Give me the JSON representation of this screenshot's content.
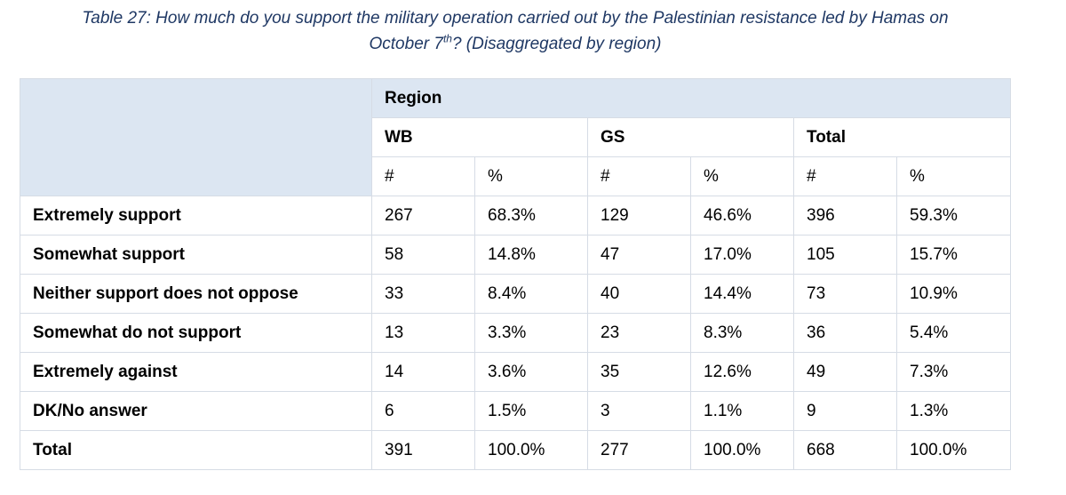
{
  "caption": {
    "line1": "Table 27: How much do you support the military operation carried out by the Palestinian resistance led by Hamas on",
    "line2_pre": "October 7",
    "line2_sup": "th",
    "line2_post": "? (Disaggregated by region)"
  },
  "table": {
    "region_label": "Region",
    "groups": [
      "WB",
      "GS",
      "Total"
    ],
    "subheaders": [
      "#",
      "%",
      "#",
      "%",
      "#",
      "%"
    ],
    "rows": [
      {
        "label": "Extremely support",
        "values": [
          "267",
          "68.3%",
          "129",
          "46.6%",
          "396",
          "59.3%"
        ]
      },
      {
        "label": "Somewhat support",
        "values": [
          "58",
          "14.8%",
          "47",
          "17.0%",
          "105",
          "15.7%"
        ]
      },
      {
        "label": "Neither support does not oppose",
        "values": [
          "33",
          "8.4%",
          "40",
          "14.4%",
          "73",
          "10.9%"
        ]
      },
      {
        "label": "Somewhat do not support",
        "values": [
          "13",
          "3.3%",
          "23",
          "8.3%",
          "36",
          "5.4%"
        ]
      },
      {
        "label": "Extremely against",
        "values": [
          "14",
          "3.6%",
          "35",
          "12.6%",
          "49",
          "7.3%"
        ]
      },
      {
        "label": "DK/No answer",
        "values": [
          "6",
          "1.5%",
          "3",
          "1.1%",
          "9",
          "1.3%"
        ]
      },
      {
        "label": "Total",
        "values": [
          "391",
          "100.0%",
          "277",
          "100.0%",
          "668",
          "100.0%"
        ]
      }
    ]
  }
}
